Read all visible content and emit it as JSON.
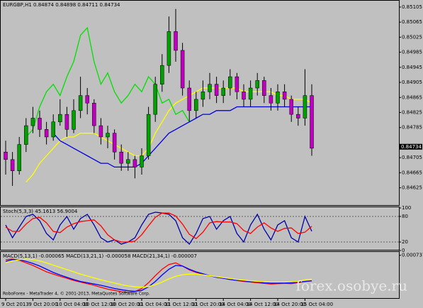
{
  "chart_data": [
    {
      "type": "candlestick",
      "title": "EURGBP,H1  0.84874 0.84898 0.84711 0.84734",
      "categories": [
        "9 Oct 2013",
        null,
        null,
        null,
        "9 Oct 20:00",
        null,
        null,
        null,
        "10 Oct 04:00",
        null,
        null,
        null,
        "10 Oct 12:00",
        null,
        null,
        null,
        "10 Oct 20:00",
        null,
        null,
        null,
        "11 Oct 04:00",
        null,
        null,
        null,
        "11 Oct 12:00",
        null,
        null,
        null,
        "11 Oct 20:00",
        null,
        null,
        null,
        "14 Oct 04:00",
        null,
        null,
        null,
        "14 Oct 12:00",
        null,
        null,
        null,
        "14 Oct 20:00",
        null,
        null,
        null,
        "15 Oct 04:00",
        null
      ],
      "open": [
        0.8472,
        0.847,
        0.8467,
        0.8474,
        0.8479,
        0.8481,
        0.8478,
        0.8476,
        0.848,
        0.8482,
        0.8478,
        0.8483,
        0.8487,
        0.8485,
        0.8479,
        0.8476,
        0.8477,
        0.8472,
        0.8469,
        0.847,
        0.8468,
        0.8471,
        0.8482,
        0.849,
        0.8495,
        0.8504,
        0.8499,
        0.8489,
        0.8483,
        0.8486,
        0.8488,
        0.849,
        0.8487,
        0.8489,
        0.8492,
        0.8488,
        0.8486,
        0.8489,
        0.8491,
        0.8487,
        0.8485,
        0.8488,
        0.8486,
        0.8482,
        0.8481,
        0.8487
      ],
      "high": [
        0.8475,
        0.8472,
        0.8476,
        0.8481,
        0.8484,
        0.8483,
        0.848,
        0.8482,
        0.8486,
        0.8484,
        0.8486,
        0.8492,
        0.8489,
        0.8486,
        0.8481,
        0.8479,
        0.8478,
        0.8474,
        0.8472,
        0.8471,
        0.8473,
        0.8484,
        0.8492,
        0.8498,
        0.8508,
        0.851,
        0.8501,
        0.8491,
        0.8488,
        0.8491,
        0.8493,
        0.8492,
        0.8491,
        0.8494,
        0.8493,
        0.849,
        0.8491,
        0.8493,
        0.8492,
        0.8489,
        0.849,
        0.849,
        0.8487,
        0.8484,
        0.8494,
        0.849
      ],
      "low": [
        0.8466,
        0.8463,
        0.8466,
        0.8472,
        0.8477,
        0.8476,
        0.8474,
        0.8475,
        0.8479,
        0.8476,
        0.8477,
        0.8481,
        0.8482,
        0.8477,
        0.8474,
        0.8473,
        0.847,
        0.8467,
        0.8467,
        0.8465,
        0.8466,
        0.847,
        0.848,
        0.8488,
        0.8493,
        0.8496,
        0.8487,
        0.848,
        0.8481,
        0.8484,
        0.8486,
        0.8485,
        0.8485,
        0.8487,
        0.8486,
        0.8484,
        0.8484,
        0.8487,
        0.8485,
        0.8483,
        0.8483,
        0.8484,
        0.848,
        0.8479,
        0.8479,
        0.8471
      ],
      "close": [
        0.847,
        0.8467,
        0.8474,
        0.8479,
        0.8481,
        0.8478,
        0.8476,
        0.848,
        0.8482,
        0.8478,
        0.8483,
        0.8487,
        0.8485,
        0.8479,
        0.8476,
        0.8477,
        0.8472,
        0.8469,
        0.847,
        0.8468,
        0.8471,
        0.8482,
        0.849,
        0.8495,
        0.8504,
        0.8499,
        0.8489,
        0.8483,
        0.8486,
        0.8488,
        0.849,
        0.8487,
        0.8489,
        0.8492,
        0.8488,
        0.8486,
        0.8489,
        0.8491,
        0.8487,
        0.8485,
        0.8488,
        0.8486,
        0.8482,
        0.8481,
        0.8487,
        0.8473
      ],
      "up_color": "#00a000",
      "down_color": "#c000c0",
      "series": [
        {
          "color": "#ffff00",
          "values": [
            null,
            null,
            null,
            0.8464,
            0.8466,
            0.8469,
            0.8471,
            0.8473,
            0.8475,
            0.8476,
            0.8476,
            0.8477,
            0.8477,
            0.8477,
            0.8476,
            0.8475,
            0.8474,
            0.8473,
            0.8472,
            0.8471,
            0.8471,
            0.8473,
            0.8477,
            0.848,
            0.8483,
            0.8485,
            0.8486,
            0.8487,
            0.8488,
            0.8489,
            0.8489,
            0.8489,
            0.8489,
            0.8489,
            0.8489,
            0.8488,
            0.8488,
            0.8488,
            0.8488,
            0.8488,
            0.8487,
            0.8487,
            0.8486,
            0.8486,
            0.8486,
            0.8485
          ]
        },
        {
          "color": "#0000dd",
          "values": [
            null,
            null,
            null,
            null,
            null,
            null,
            null,
            0.8477,
            0.8475,
            0.8474,
            0.8473,
            0.8472,
            0.8471,
            0.847,
            0.8469,
            0.8469,
            0.8468,
            0.8468,
            0.8468,
            0.8468,
            0.8469,
            0.8471,
            0.8473,
            0.8475,
            0.8477,
            0.8478,
            0.8479,
            0.848,
            0.8481,
            0.8482,
            0.8482,
            0.8483,
            0.8483,
            0.8483,
            0.8484,
            0.8484,
            0.8484,
            0.8484,
            0.8484,
            0.8484,
            0.8484,
            0.8484,
            0.8484,
            0.8484,
            0.8484,
            0.8484
          ]
        },
        {
          "color": "#00e000",
          "values": [
            null,
            null,
            null,
            0.8476,
            0.8478,
            0.8484,
            0.8488,
            0.849,
            0.8487,
            0.8492,
            0.8496,
            0.8503,
            0.8505,
            0.8496,
            0.849,
            0.8493,
            0.8488,
            0.8485,
            0.8487,
            0.849,
            0.8488,
            0.8492,
            0.849,
            0.8485,
            0.8486,
            0.8482,
            0.8483,
            0.848,
            null,
            null,
            null,
            null,
            null,
            null,
            null,
            null,
            null,
            null,
            null,
            null,
            null,
            null,
            null,
            null,
            null,
            null
          ]
        }
      ],
      "ylim": [
        0.84579,
        0.8512
      ],
      "yticks": [
        0.85105,
        0.85065,
        0.85025,
        0.84985,
        0.84945,
        0.84905,
        0.84865,
        0.84825,
        0.84785,
        0.84705,
        0.84665,
        0.84625
      ],
      "current_price": 0.84734
    },
    {
      "type": "line",
      "title": "Stoch(5,3,3) 45.1613 56.9004",
      "series": [
        {
          "color": "#0000aa",
          "values": [
            60,
            30,
            55,
            80,
            85,
            70,
            40,
            25,
            60,
            80,
            50,
            75,
            85,
            60,
            30,
            20,
            25,
            15,
            20,
            30,
            60,
            85,
            90,
            88,
            85,
            70,
            30,
            15,
            40,
            75,
            80,
            50,
            70,
            80,
            40,
            20,
            60,
            85,
            50,
            25,
            60,
            70,
            30,
            20,
            80,
            45.1613
          ]
        },
        {
          "color": "#ff0000",
          "values": [
            55,
            45,
            45,
            62,
            75,
            78,
            65,
            45,
            42,
            55,
            63,
            68,
            70,
            72,
            58,
            37,
            25,
            20,
            20,
            22,
            37,
            58,
            78,
            88,
            88,
            81,
            62,
            38,
            28,
            43,
            65,
            68,
            67,
            67,
            63,
            47,
            40,
            55,
            65,
            53,
            45,
            52,
            53,
            40,
            43,
            56.9004
          ]
        }
      ],
      "ylim": [
        0,
        100
      ],
      "yticks": [
        100,
        80,
        20,
        0
      ],
      "levels": [
        80,
        20
      ]
    },
    {
      "type": "line",
      "title": "MACD(5,13,1) -0.000065  MACD(13,21,1) -0.000058  MACD(21,34,1) -0.000007",
      "series": [
        {
          "color": "#ff0000",
          "values": [
            0.0006,
            0.00062,
            0.00058,
            0.0005,
            0.00042,
            0.00032,
            0.00022,
            0.00015,
            8e-05,
            2e-05,
            -5e-05,
            -0.0001,
            -0.00015,
            -0.0002,
            -0.00026,
            -0.00032,
            -0.00036,
            -0.0004,
            -0.00042,
            -0.0004,
            -0.0003,
            -0.00012,
            0.0001,
            0.0003,
            0.00045,
            0.0005,
            0.0004,
            0.00028,
            0.0002,
            0.00015,
            0.0001,
            5e-05,
            2e-05,
            -2e-05,
            -5e-05,
            -8e-05,
            -0.0001,
            -0.00012,
            -0.00014,
            -0.00016,
            -0.00015,
            -0.00014,
            -0.00015,
            -0.00012,
            -8e-05,
            -6.5e-05
          ]
        },
        {
          "color": "#0000ff",
          "values": [
            0.00055,
            0.0006,
            0.0006,
            0.00055,
            0.00048,
            0.0004,
            0.0003,
            0.0002,
            0.00012,
            5e-05,
            -2e-05,
            -8e-05,
            -0.00012,
            -0.00016,
            -0.0002,
            -0.00025,
            -0.0003,
            -0.00034,
            -0.00037,
            -0.00039,
            -0.00036,
            -0.00025,
            -8e-05,
            0.00012,
            0.0003,
            0.00042,
            0.0004,
            0.0003,
            0.00022,
            0.00016,
            0.0001,
            5e-05,
            2e-05,
            -2e-05,
            -4e-05,
            -6e-05,
            -8e-05,
            -0.0001,
            -0.00012,
            -0.00013,
            -0.00013,
            -0.00012,
            -0.00012,
            -0.0001,
            -8e-05,
            -5.8e-05
          ]
        },
        {
          "color": "#ffff00",
          "values": [
            0.0005,
            0.00056,
            0.0006,
            0.00062,
            0.0006,
            0.00056,
            0.0005,
            0.00043,
            0.00036,
            0.00029,
            0.00022,
            0.00015,
            9e-05,
            3e-05,
            -3e-05,
            -8e-05,
            -0.00013,
            -0.00018,
            -0.00022,
            -0.00025,
            -0.00026,
            -0.00024,
            -0.00018,
            -0.0001,
            0,
            8e-05,
            0.00013,
            0.00015,
            0.00015,
            0.00013,
            0.0001,
            7e-05,
            4e-05,
            1e-05,
            -2e-05,
            -4e-05,
            -6e-05,
            -8e-05,
            -9e-05,
            -0.0001,
            -0.0001,
            -0.0001,
            -9e-05,
            -8e-05,
            -3e-05,
            -7e-06
          ]
        }
      ],
      "ylim": [
        -0.0006,
        0.00082
      ],
      "yticks": [
        0.000737
      ]
    }
  ],
  "footer": "RoboForex - MetaTrader 4, © 2001-2013, MetaQuotes Software Corp.",
  "watermark": "forex.osobye.ru"
}
